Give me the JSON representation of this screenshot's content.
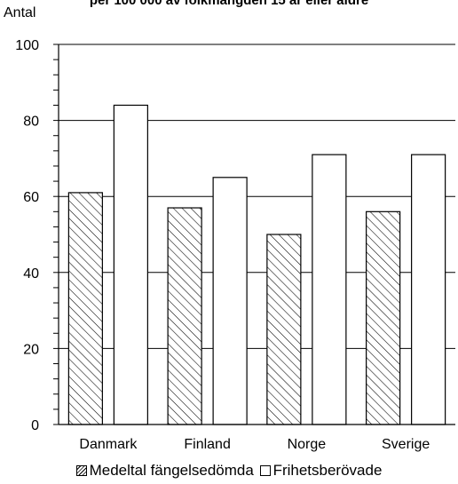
{
  "chart_data": {
    "type": "bar",
    "title": "per 100 000 av folkmängden 15 år eller äldre",
    "ylabel": "Antal",
    "xlabel": "",
    "ylim": [
      0,
      100
    ],
    "yticks": [
      0,
      20,
      40,
      60,
      80,
      100
    ],
    "grid": true,
    "legend_placement": "bottom",
    "categories": [
      "Danmark",
      "Finland",
      "Norge",
      "Sverige"
    ],
    "series": [
      {
        "name": "Medeltal fängelsedömda",
        "values": [
          61,
          57,
          50,
          56
        ],
        "fill": "hatched"
      },
      {
        "name": "Frihetsberövade",
        "values": [
          84,
          65,
          71,
          71
        ],
        "fill": "white"
      }
    ]
  }
}
